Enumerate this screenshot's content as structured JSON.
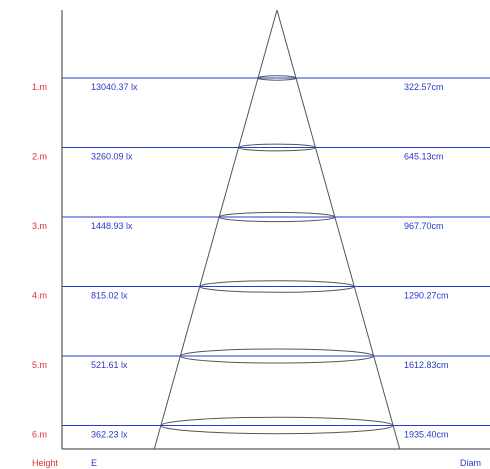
{
  "colors": {
    "level_line": "#2b3ad6",
    "cone": "#555555",
    "height_label": "#e03030",
    "value_label": "#2a38c8",
    "frame": "#333333"
  },
  "levels": [
    {
      "height": "1.m",
      "illuminance": "13040.37 lx",
      "diameter": "322.57cm",
      "diameter_cm": 322.57
    },
    {
      "height": "2.m",
      "illuminance": "3260.09 lx",
      "diameter": "645.13cm",
      "diameter_cm": 645.13
    },
    {
      "height": "3.m",
      "illuminance": "1448.93 lx",
      "diameter": "967.70cm",
      "diameter_cm": 967.7
    },
    {
      "height": "4.m",
      "illuminance": "815.02 lx",
      "diameter": "1290.27cm",
      "diameter_cm": 1290.27
    },
    {
      "height": "5.m",
      "illuminance": "521.61 lx",
      "diameter": "1612.83cm",
      "diameter_cm": 1612.83
    },
    {
      "height": "6.m",
      "illuminance": "362.23 lx",
      "diameter": "1935.40cm",
      "diameter_cm": 1935.4
    }
  ],
  "footer": {
    "height_label": "Height",
    "illuminance_label": "E",
    "diameter_label": "Diam"
  }
}
